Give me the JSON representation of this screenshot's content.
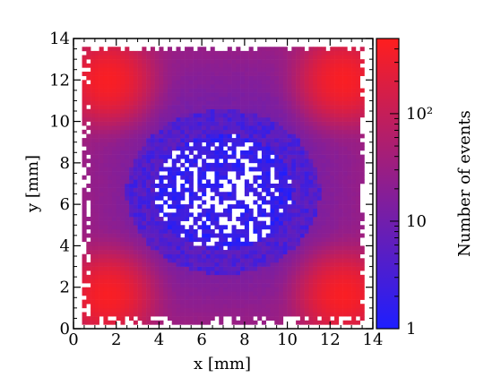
{
  "chart_data": {
    "type": "heatmap",
    "title": "",
    "xlabel": "x [mm]",
    "ylabel": "y [mm]",
    "colorbar_label": "Number of events",
    "xlim": [
      0,
      14
    ],
    "ylim": [
      0,
      14
    ],
    "x_ticks": [
      0,
      2,
      4,
      6,
      8,
      10,
      12,
      14
    ],
    "y_ticks": [
      0,
      2,
      4,
      6,
      8,
      10,
      12,
      14
    ],
    "colorbar": {
      "scale": "log",
      "range": [
        1,
        500
      ],
      "ticks": [
        {
          "value": 1,
          "label": "1"
        },
        {
          "value": 10,
          "label": "10"
        },
        {
          "value": 100,
          "label": "10²"
        }
      ]
    },
    "colormap": [
      "#1e1eff",
      "#ff1e1e"
    ],
    "grid": false,
    "bins": {
      "x": 70,
      "y": 70
    },
    "populated_region": {
      "x": [
        0.5,
        13.7
      ],
      "y": [
        0.3,
        13.7
      ]
    },
    "hotspots": [
      {
        "x": 1.6,
        "y": 12.0,
        "value": 400
      },
      {
        "x": 12.6,
        "y": 12.0,
        "value": 400
      },
      {
        "x": 1.6,
        "y": 1.6,
        "value": 400
      },
      {
        "x": 12.6,
        "y": 1.6,
        "value": 400
      }
    ],
    "sparse_center": {
      "x": 7.0,
      "y": 6.6,
      "radius_x": 3.2,
      "radius_y": 2.8,
      "value": 1
    }
  }
}
